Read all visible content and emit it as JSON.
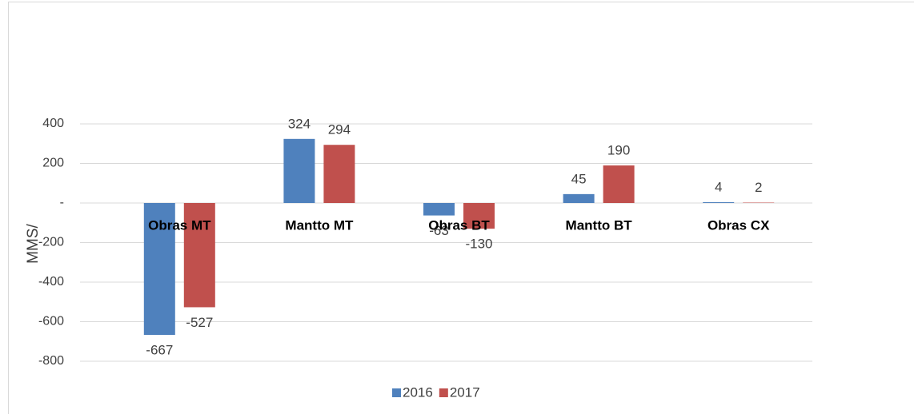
{
  "chart_data": {
    "type": "bar",
    "y_label": "MMS/",
    "categories": [
      "Obras MT",
      "Mantto MT",
      "Obras BT",
      "Mantto BT",
      "Obras CX"
    ],
    "series": [
      {
        "name": "2016",
        "color": "#4f81bd",
        "values": [
          -667,
          324,
          -63,
          45,
          4
        ]
      },
      {
        "name": "2017",
        "color": "#c0504d",
        "values": [
          -527,
          294,
          -130,
          190,
          2
        ]
      }
    ],
    "ylim": [
      -800,
      400
    ],
    "yticks": [
      400,
      200,
      {
        "value": 0,
        "label": "-"
      },
      -200,
      -400,
      -600,
      -800
    ],
    "grid": true,
    "legend": "bottom"
  }
}
